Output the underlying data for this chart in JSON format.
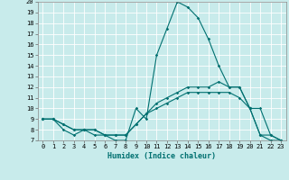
{
  "title": "",
  "xlabel": "Humidex (Indice chaleur)",
  "ylabel": "",
  "background_color": "#c8ebeb",
  "grid_color": "#ffffff",
  "line_color": "#007070",
  "xlim": [
    -0.5,
    23.5
  ],
  "ylim": [
    7,
    20
  ],
  "xticks": [
    0,
    1,
    2,
    3,
    4,
    5,
    6,
    7,
    8,
    9,
    10,
    11,
    12,
    13,
    14,
    15,
    16,
    17,
    18,
    19,
    20,
    21,
    22,
    23
  ],
  "yticks": [
    7,
    8,
    9,
    10,
    11,
    12,
    13,
    14,
    15,
    16,
    17,
    18,
    19,
    20
  ],
  "line1_x": [
    0,
    1,
    2,
    3,
    4,
    5,
    6,
    7,
    8,
    9,
    10,
    11,
    12,
    13,
    14,
    15,
    16,
    17,
    18,
    19,
    20,
    21,
    22,
    23
  ],
  "line1_y": [
    9,
    9,
    8,
    7.5,
    8,
    7.5,
    7.5,
    7,
    7,
    10,
    9,
    15,
    17.5,
    20,
    19.5,
    18.5,
    16.5,
    14,
    12,
    12,
    10,
    7.5,
    7,
    7
  ],
  "line2_x": [
    0,
    1,
    2,
    3,
    4,
    5,
    6,
    7,
    8,
    9,
    10,
    11,
    12,
    13,
    14,
    15,
    16,
    17,
    18,
    19,
    20,
    21,
    22,
    23
  ],
  "line2_y": [
    9,
    9,
    8.5,
    8,
    8,
    8,
    7.5,
    7.5,
    7.5,
    8.5,
    9.5,
    10,
    10.5,
    11,
    11.5,
    11.5,
    11.5,
    11.5,
    11.5,
    11,
    10,
    10,
    7.5,
    7
  ],
  "line3_x": [
    0,
    1,
    2,
    3,
    4,
    5,
    6,
    7,
    8,
    9,
    10,
    11,
    12,
    13,
    14,
    15,
    16,
    17,
    18,
    19,
    20,
    21,
    22,
    23
  ],
  "line3_y": [
    9,
    9,
    8.5,
    8,
    8,
    8,
    7.5,
    7.5,
    7.5,
    8.5,
    9.5,
    10.5,
    11,
    11.5,
    12,
    12,
    12,
    12.5,
    12,
    12,
    10,
    7.5,
    7.5,
    7
  ],
  "tick_fontsize": 5.0,
  "xlabel_fontsize": 6.0
}
